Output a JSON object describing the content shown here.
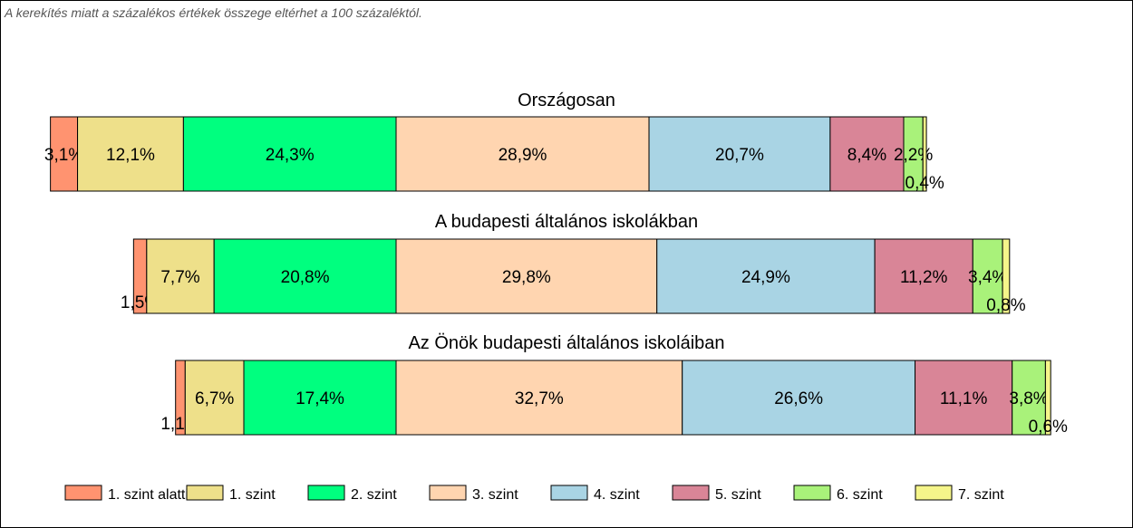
{
  "note": "A kerekítés miatt a  százalékos értékek összege eltérhet a 100 százaléktól.",
  "chart_data": {
    "type": "bar",
    "orientation": "horizontal-stacked-100",
    "levels": [
      "1. szint alatti",
      "1. szint",
      "2. szint",
      "3. szint",
      "4. szint",
      "5. szint",
      "6. szint",
      "7. szint"
    ],
    "colors": [
      "#FF9370",
      "#EEE08A",
      "#00FF7F",
      "#FFD5B0",
      "#A9D4E4",
      "#D98597",
      "#A9F27A",
      "#F5F58A"
    ],
    "legend_position": "bottom",
    "groups": [
      {
        "title": "Országosan",
        "values": [
          3.1,
          12.1,
          24.3,
          28.9,
          20.7,
          8.4,
          2.2,
          0.4
        ],
        "labels": [
          "3,1%",
          "12,1%",
          "24,3%",
          "28,9%",
          "20,7%",
          "8,4%",
          "2,2%",
          "0,4%"
        ]
      },
      {
        "title": "A budapesti általános iskolákban",
        "values": [
          1.5,
          7.7,
          20.8,
          29.8,
          24.9,
          11.2,
          3.4,
          0.8
        ],
        "labels": [
          "1,5%",
          "7,7%",
          "20,8%",
          "29,8%",
          "24,9%",
          "11,2%",
          "3,4%",
          "0,8%"
        ]
      },
      {
        "title": "Az Önök budapesti általános iskoláiban",
        "values": [
          1.1,
          6.7,
          17.4,
          32.7,
          26.6,
          11.1,
          3.8,
          0.6
        ],
        "labels": [
          "1,1%",
          "6,7%",
          "17,4%",
          "32,7%",
          "26,6%",
          "11,1%",
          "3,8%",
          "0,6%"
        ]
      }
    ]
  }
}
